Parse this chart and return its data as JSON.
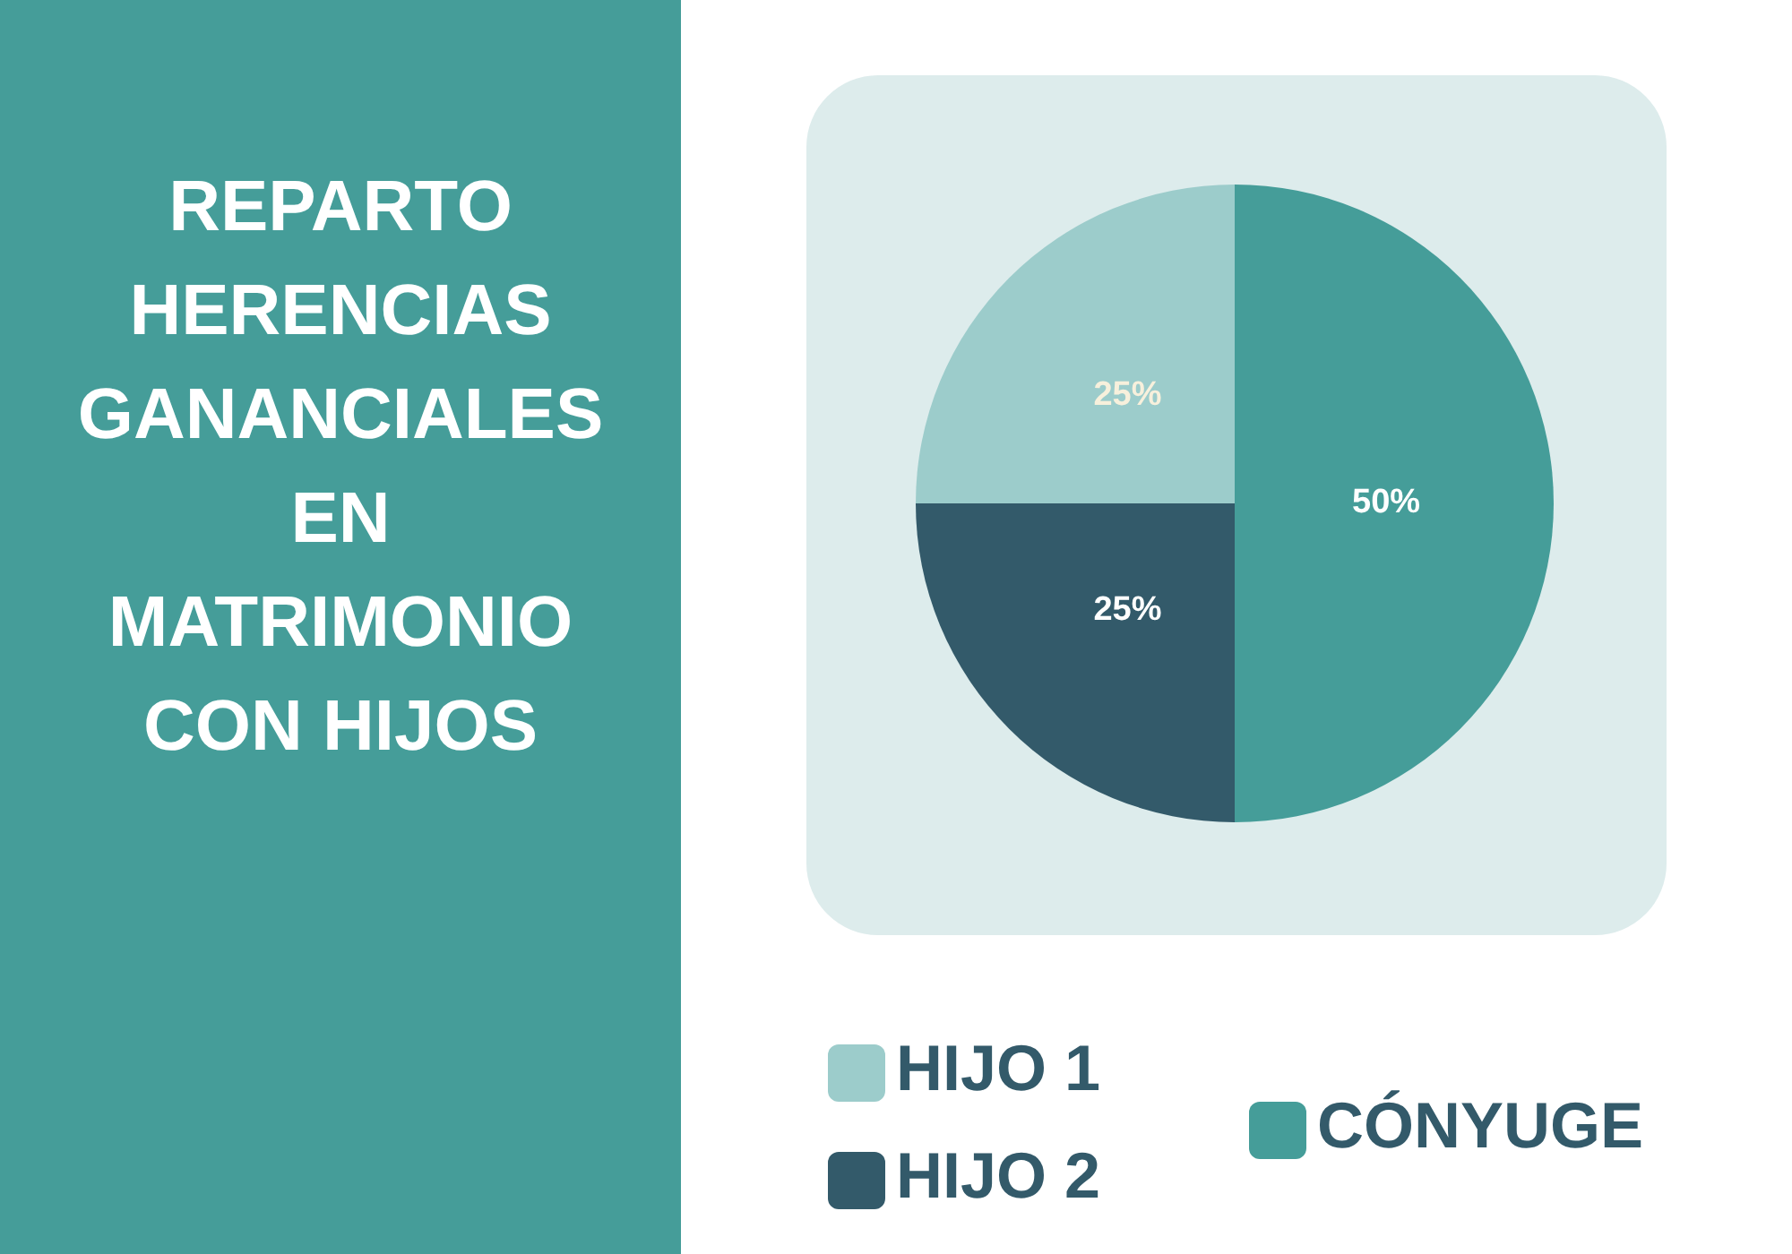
{
  "chart_data": {
    "type": "pie",
    "title": "REPARTO\nHERENCIAS\nGANANCIALES\nEN\nMATRIMONIO\nCON HIJOS",
    "categories": [
      "HIJO 1",
      "HIJO 2",
      "CÓNYUGE"
    ],
    "values": [
      25,
      25,
      50
    ],
    "colors": [
      "#9ccccb",
      "#335a6a",
      "#459d99"
    ],
    "value_labels": [
      "25%",
      "25%",
      "50%"
    ],
    "legend": "bottom"
  }
}
